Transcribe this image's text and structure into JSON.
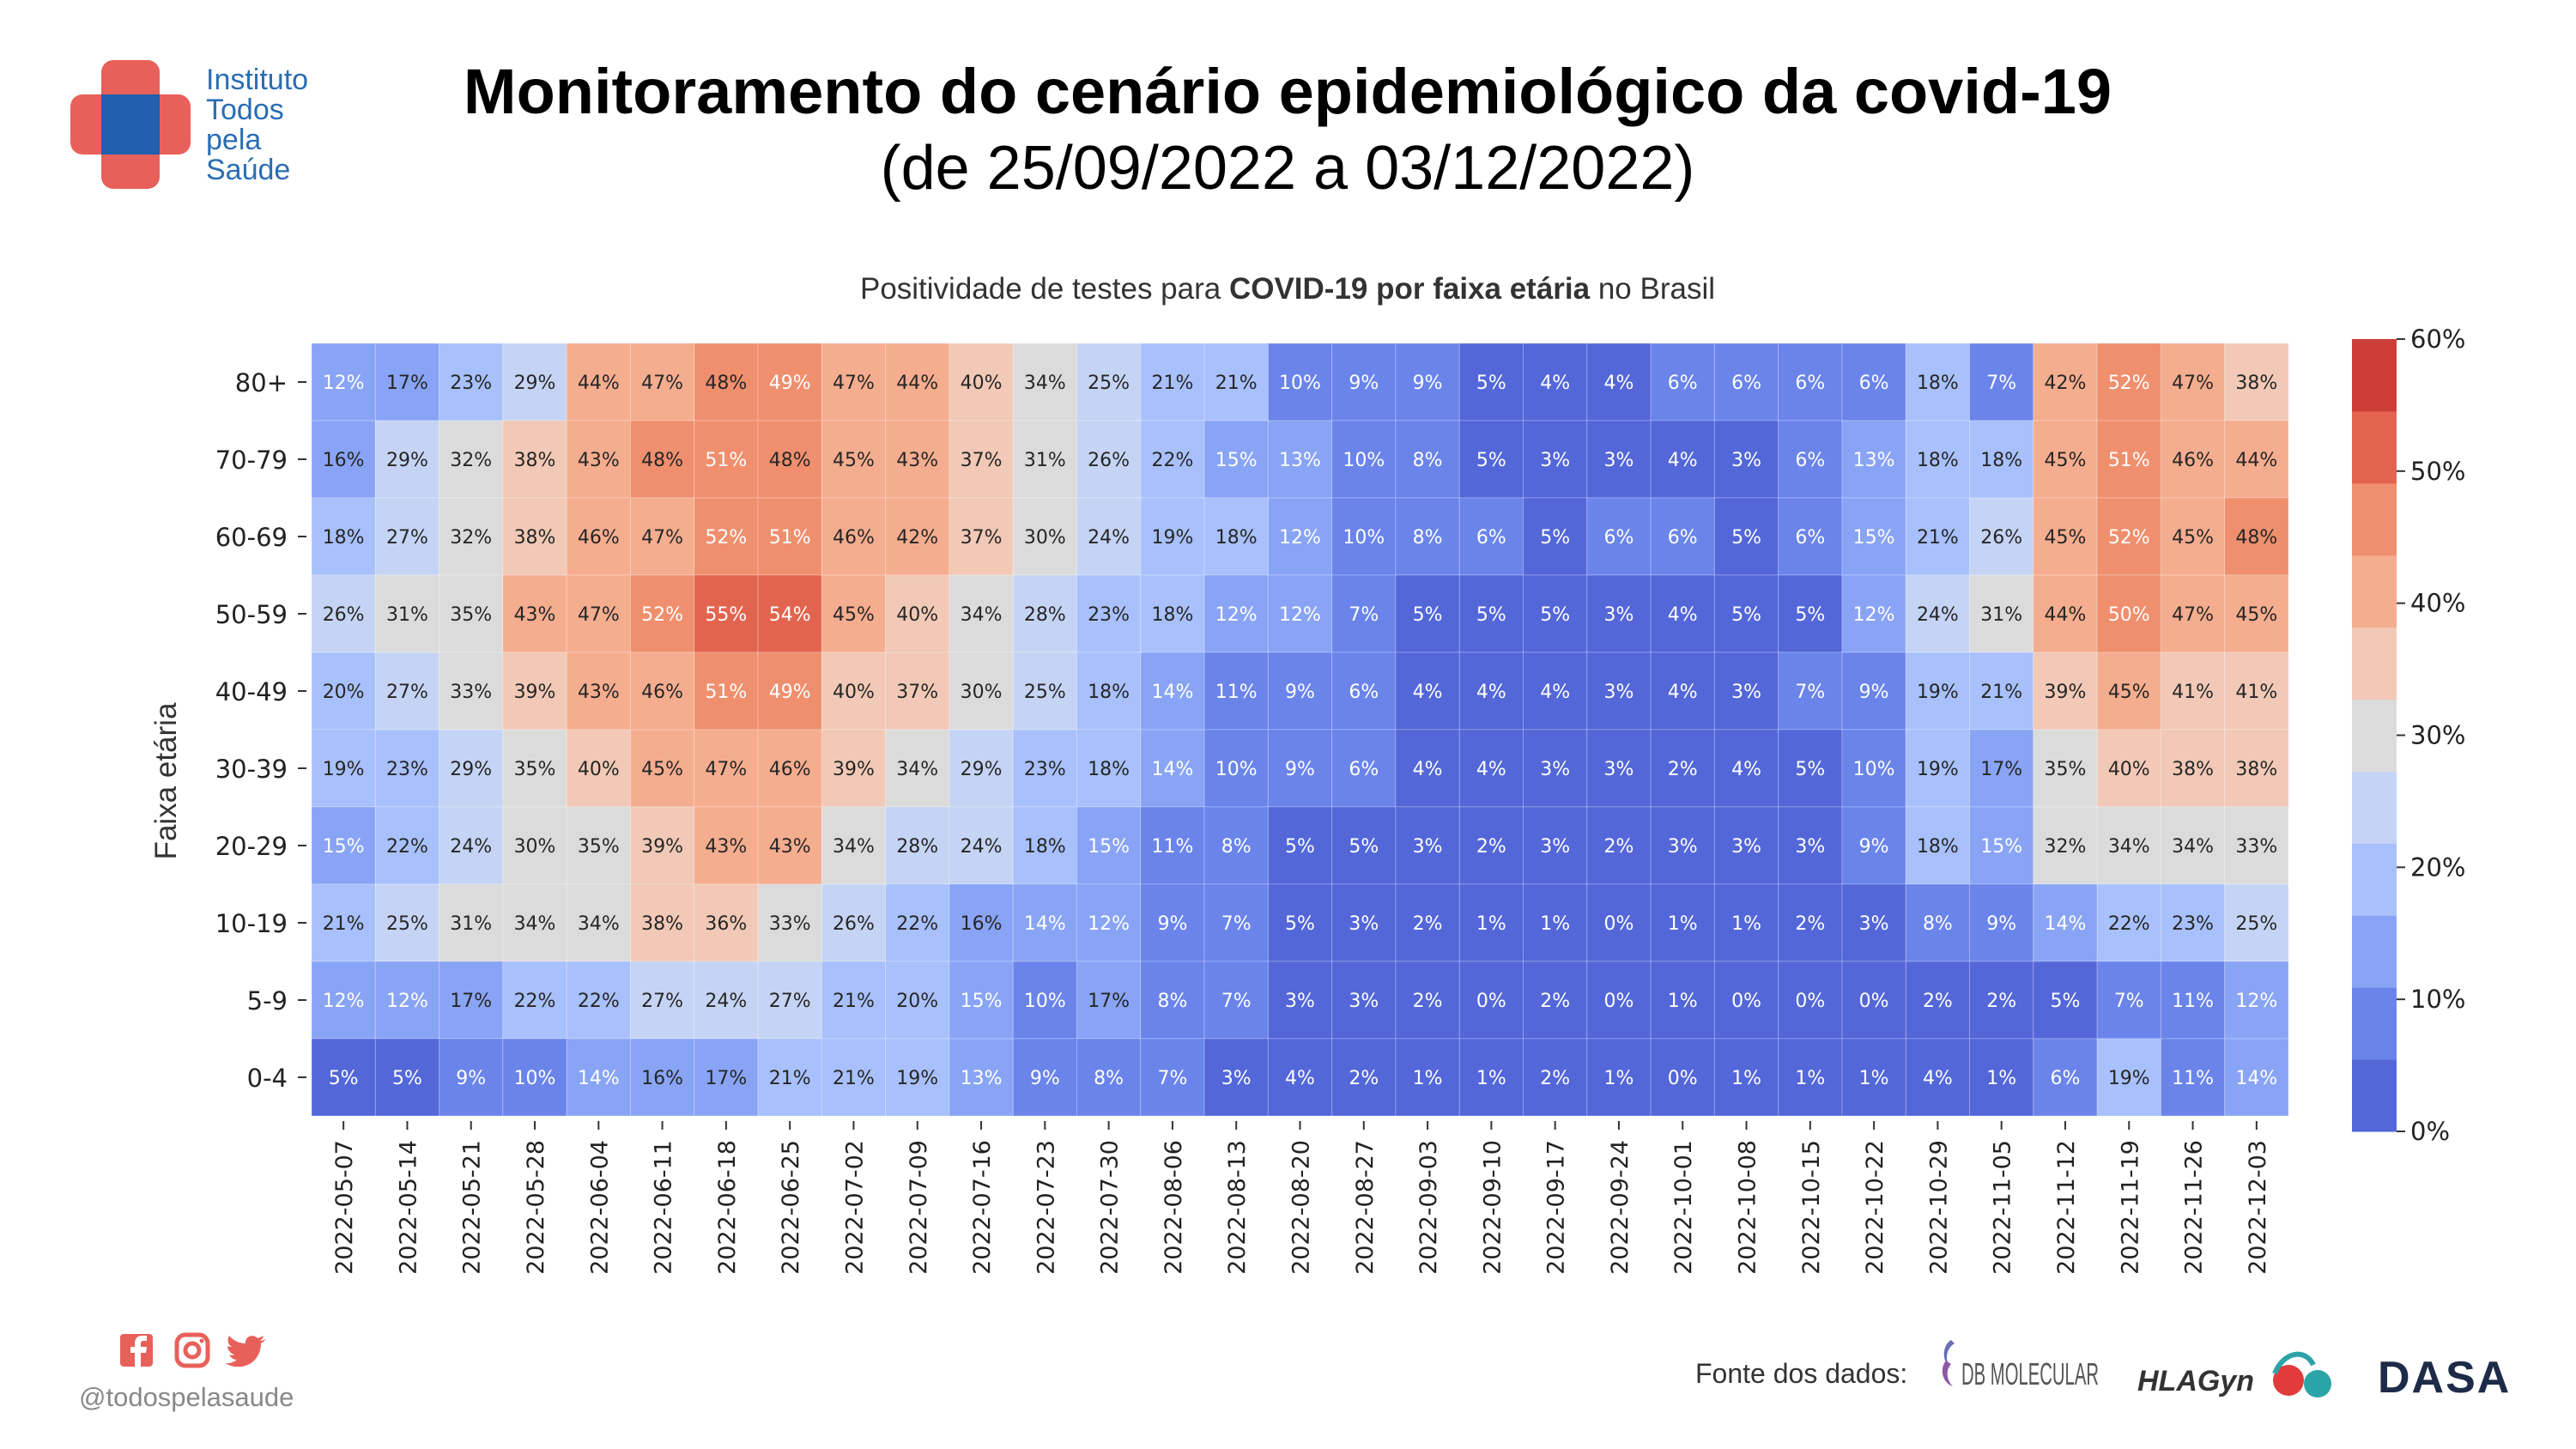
{
  "branding": {
    "logo_lines": [
      "Instituto",
      "Todos",
      "pela",
      "Saúde"
    ],
    "handle": "@todospelasaude",
    "social_icons": [
      "facebook-icon",
      "instagram-icon",
      "twitter-icon"
    ]
  },
  "header": {
    "title": "Monitoramento do cenário epidemiológico da covid-19",
    "subtitle": "(de 25/09/2022 a 03/12/2022)"
  },
  "footer": {
    "source_label": "Fonte dos dados:",
    "sponsors": [
      "DB MOLECULAR",
      "HLAGyn",
      "DASA"
    ]
  },
  "chart_data": {
    "type": "heatmap",
    "title_parts": [
      "Positividade de testes para ",
      "COVID-19 por faixa etária",
      " no Brasil"
    ],
    "ylabel": "Faixa etária",
    "xlabel": "",
    "colorbar": {
      "min": 0,
      "max": 60,
      "ticks": [
        "0%",
        "10%",
        "20%",
        "30%",
        "40%",
        "50%",
        "60%"
      ]
    },
    "x": [
      "2022-05-07",
      "2022-05-14",
      "2022-05-21",
      "2022-05-28",
      "2022-06-04",
      "2022-06-11",
      "2022-06-18",
      "2022-06-25",
      "2022-07-02",
      "2022-07-09",
      "2022-07-16",
      "2022-07-23",
      "2022-07-30",
      "2022-08-06",
      "2022-08-13",
      "2022-08-20",
      "2022-08-27",
      "2022-09-03",
      "2022-09-10",
      "2022-09-17",
      "2022-09-24",
      "2022-10-01",
      "2022-10-08",
      "2022-10-15",
      "2022-10-22",
      "2022-10-29",
      "2022-11-05",
      "2022-11-12",
      "2022-11-19",
      "2022-11-26",
      "2022-12-03"
    ],
    "y": [
      "80+",
      "70-79",
      "60-69",
      "50-59",
      "40-49",
      "30-39",
      "20-29",
      "10-19",
      "5-9",
      "0-4"
    ],
    "values": [
      [
        12,
        17,
        23,
        29,
        44,
        47,
        48,
        49,
        47,
        44,
        40,
        34,
        25,
        21,
        21,
        10,
        9,
        9,
        5,
        4,
        4,
        6,
        6,
        6,
        6,
        18,
        7,
        42,
        52,
        47,
        38
      ],
      [
        16,
        29,
        32,
        38,
        43,
        48,
        51,
        48,
        45,
        43,
        37,
        31,
        26,
        22,
        15,
        13,
        10,
        8,
        5,
        3,
        3,
        4,
        3,
        6,
        13,
        18,
        18,
        45,
        51,
        46,
        44
      ],
      [
        18,
        27,
        32,
        38,
        46,
        47,
        52,
        51,
        46,
        42,
        37,
        30,
        24,
        19,
        18,
        12,
        10,
        8,
        6,
        5,
        6,
        6,
        5,
        6,
        15,
        21,
        26,
        45,
        52,
        45,
        48
      ],
      [
        26,
        31,
        35,
        43,
        47,
        52,
        55,
        54,
        45,
        40,
        34,
        28,
        23,
        18,
        12,
        12,
        7,
        5,
        5,
        5,
        3,
        4,
        5,
        5,
        12,
        24,
        31,
        44,
        50,
        47,
        45
      ],
      [
        20,
        27,
        33,
        39,
        43,
        46,
        51,
        49,
        40,
        37,
        30,
        25,
        18,
        14,
        11,
        9,
        6,
        4,
        4,
        4,
        3,
        4,
        3,
        7,
        9,
        19,
        21,
        39,
        45,
        41,
        41
      ],
      [
        19,
        23,
        29,
        35,
        40,
        45,
        47,
        46,
        39,
        34,
        29,
        23,
        18,
        14,
        10,
        9,
        6,
        4,
        4,
        3,
        3,
        2,
        4,
        5,
        10,
        19,
        17,
        35,
        40,
        38,
        38
      ],
      [
        15,
        22,
        24,
        30,
        35,
        39,
        43,
        43,
        34,
        28,
        24,
        18,
        15,
        11,
        8,
        5,
        5,
        3,
        2,
        3,
        2,
        3,
        3,
        3,
        9,
        18,
        15,
        32,
        34,
        34,
        33
      ],
      [
        21,
        25,
        31,
        34,
        34,
        38,
        36,
        33,
        26,
        22,
        16,
        14,
        12,
        9,
        7,
        5,
        3,
        2,
        1,
        1,
        0,
        1,
        1,
        2,
        3,
        8,
        9,
        14,
        22,
        23,
        25
      ],
      [
        12,
        12,
        17,
        22,
        22,
        27,
        24,
        27,
        21,
        20,
        15,
        10,
        17,
        8,
        7,
        3,
        3,
        2,
        0,
        2,
        0,
        1,
        0,
        0,
        0,
        2,
        2,
        5,
        7,
        11,
        12
      ],
      [
        5,
        5,
        9,
        10,
        14,
        16,
        17,
        21,
        21,
        19,
        13,
        9,
        8,
        7,
        3,
        4,
        2,
        1,
        1,
        2,
        1,
        0,
        1,
        1,
        1,
        4,
        1,
        6,
        19,
        11,
        14
      ]
    ]
  }
}
